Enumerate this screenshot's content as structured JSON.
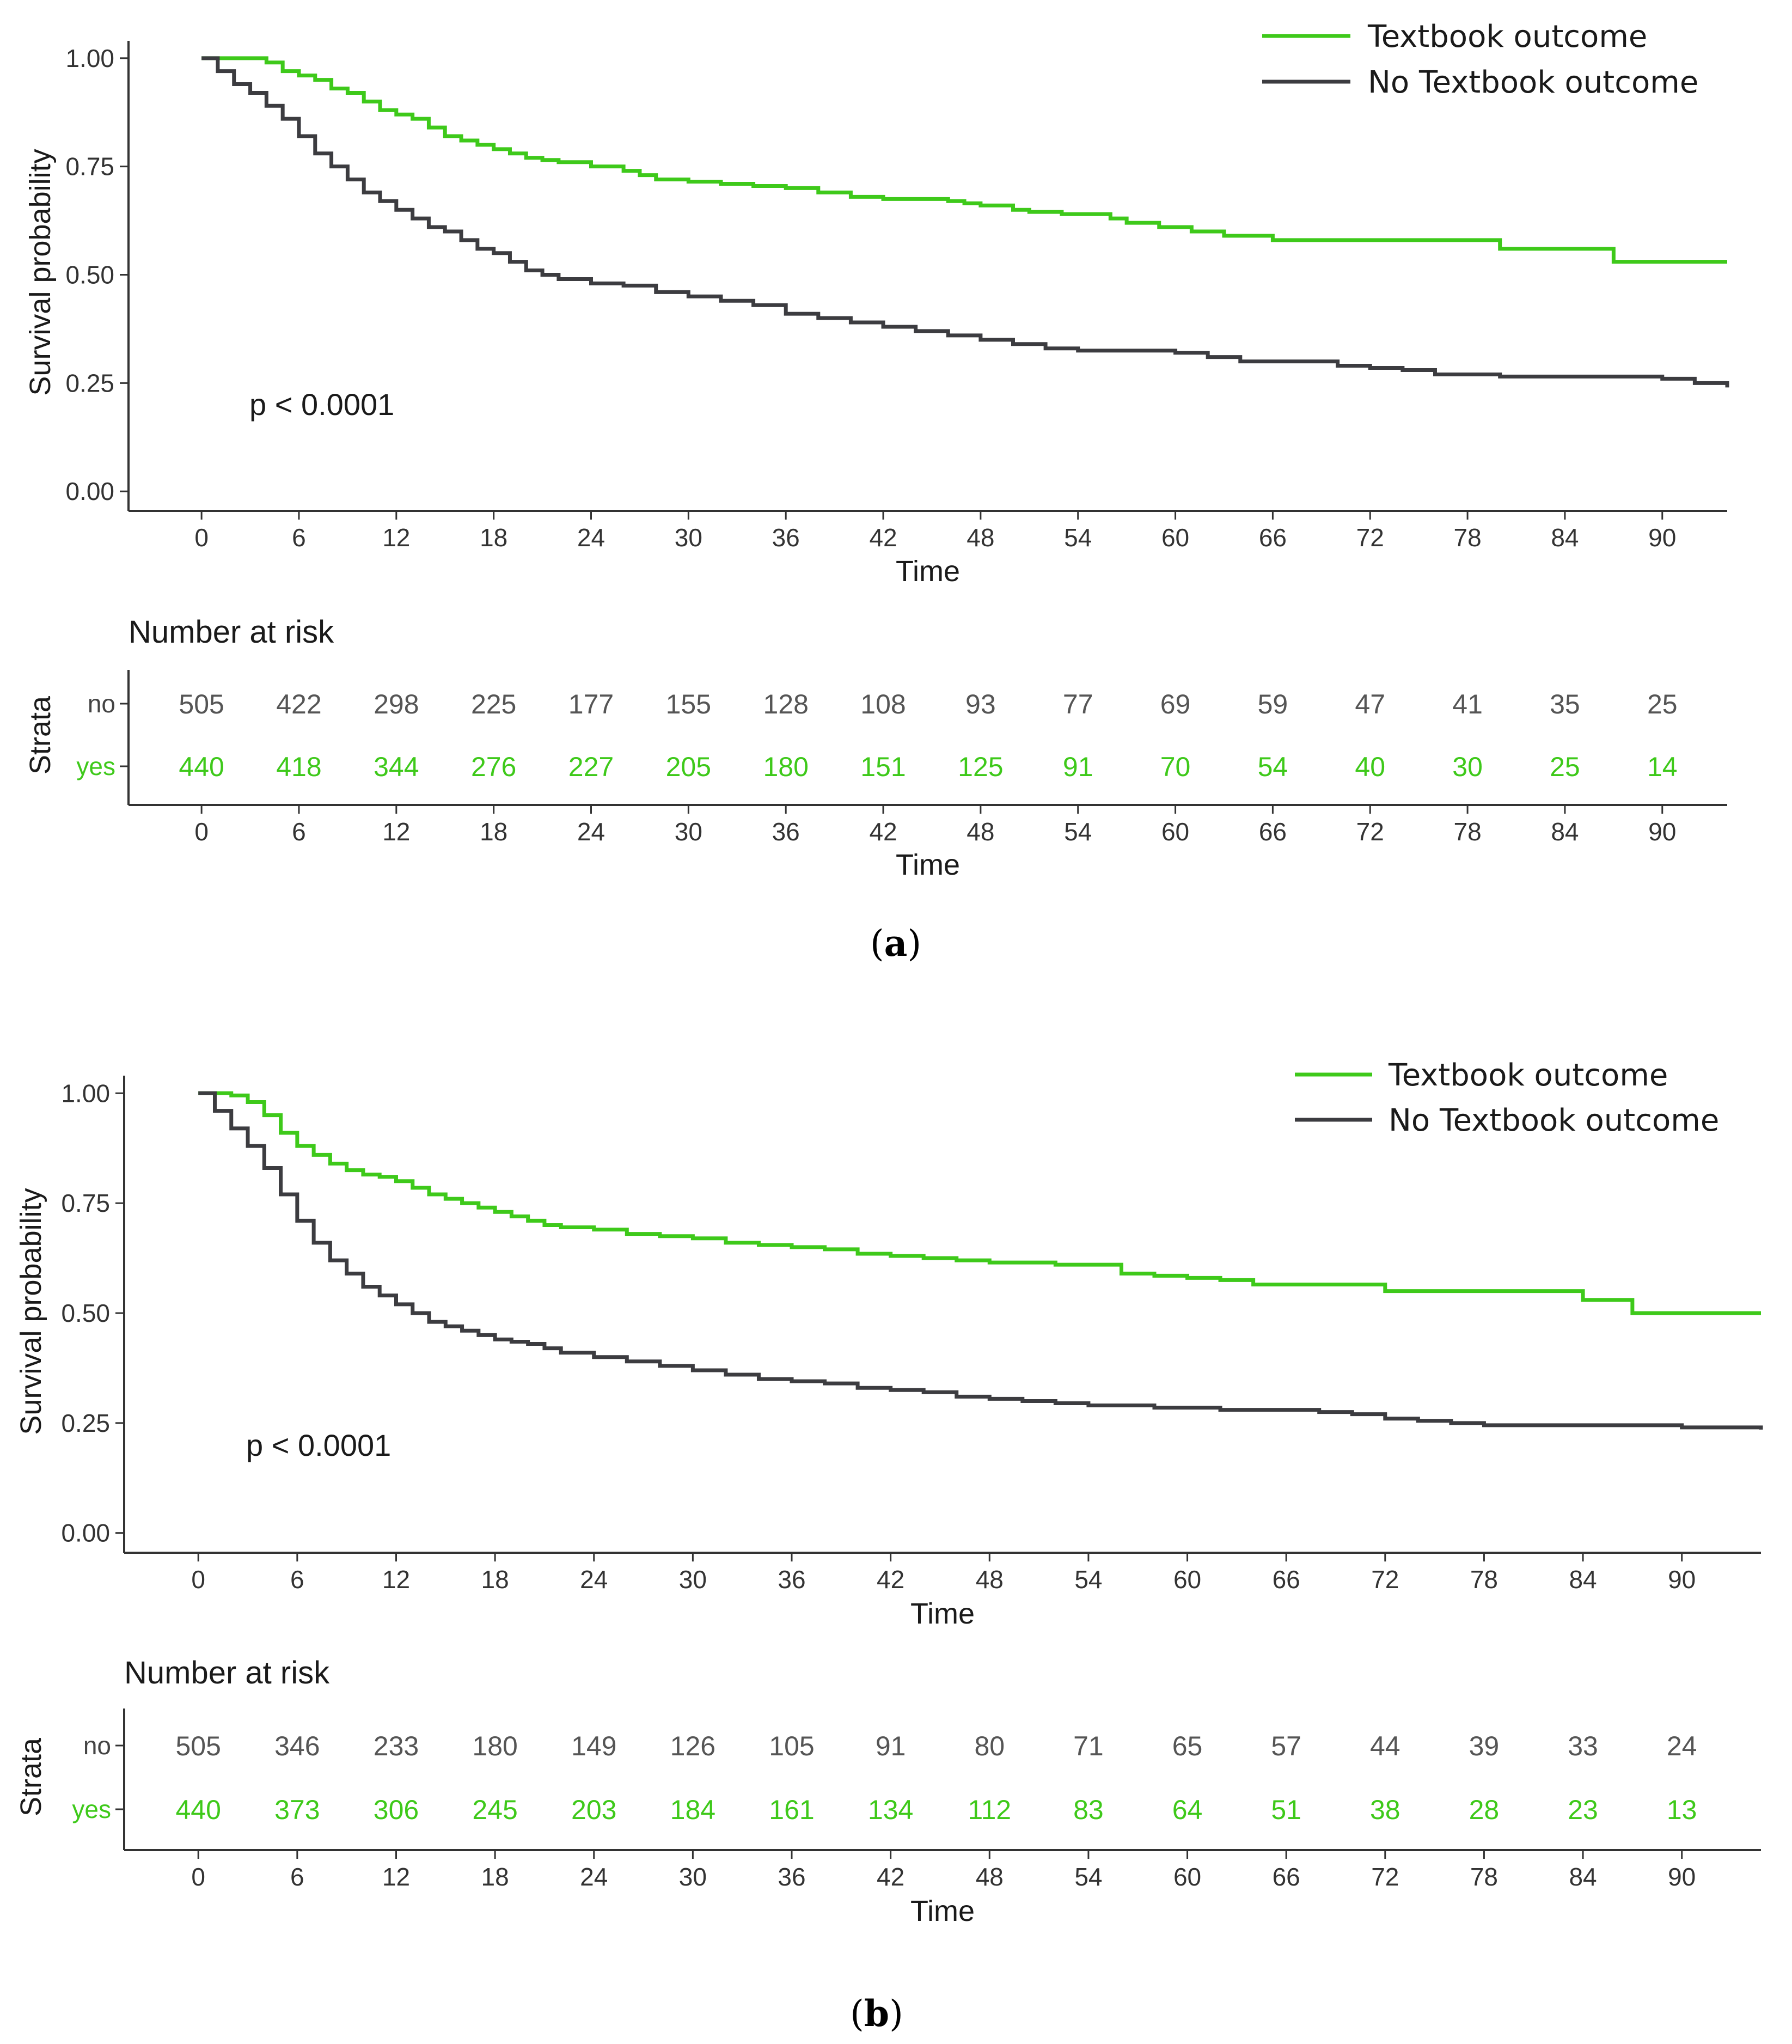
{
  "colors": {
    "textbook": "#3ec91a",
    "no_textbook": "#3c3c40"
  },
  "panels": [
    {
      "panel_label": "a",
      "legend": {
        "textbook": "Textbook outcome",
        "no_textbook": "No Textbook outcome"
      },
      "p_value": "p < 0.0001",
      "risk_table": {
        "title": "Number at risk",
        "ylabel": "Strata",
        "xlabel": "Time",
        "row_labels": {
          "no": "no",
          "yes": "yes"
        }
      }
    },
    {
      "panel_label": "b",
      "legend": {
        "textbook": "Textbook outcome",
        "no_textbook": "No Textbook outcome"
      },
      "p_value": "p < 0.0001",
      "risk_table": {
        "title": "Number at risk",
        "ylabel": "Strata",
        "xlabel": "Time",
        "row_labels": {
          "no": "no",
          "yes": "yes"
        }
      }
    }
  ],
  "chart_data": [
    {
      "type": "line",
      "title": "",
      "xlabel": "Time",
      "ylabel": "Survival probability",
      "xlim": [
        -4.5,
        94
      ],
      "ylim": [
        -0.045,
        1.04
      ],
      "x_ticks": [
        0,
        6,
        12,
        18,
        24,
        30,
        36,
        42,
        48,
        54,
        60,
        66,
        72,
        78,
        84,
        90
      ],
      "y_ticks": [
        0.0,
        0.25,
        0.5,
        0.75,
        1.0
      ],
      "y_tick_labels": [
        "0.00",
        "0.25",
        "0.50",
        "0.75",
        "1.00"
      ],
      "grid": false,
      "legend_position": "top-right",
      "series": [
        {
          "name": "Textbook outcome",
          "x": [
            0,
            3,
            4,
            5,
            6,
            7,
            8,
            9,
            10,
            11,
            12,
            13,
            14,
            15,
            16,
            17,
            18,
            19,
            20,
            21,
            22,
            24,
            26,
            27,
            28,
            30,
            32,
            34,
            36,
            38,
            40,
            42,
            46,
            47,
            48,
            50,
            51,
            53,
            56,
            57,
            59,
            61,
            63,
            66,
            67,
            70,
            72,
            75,
            77,
            80,
            83,
            87,
            89,
            94
          ],
          "y": [
            1.0,
            1.0,
            0.99,
            0.97,
            0.96,
            0.95,
            0.93,
            0.92,
            0.9,
            0.88,
            0.87,
            0.86,
            0.84,
            0.82,
            0.81,
            0.8,
            0.79,
            0.78,
            0.77,
            0.765,
            0.76,
            0.75,
            0.74,
            0.73,
            0.72,
            0.715,
            0.71,
            0.705,
            0.7,
            0.69,
            0.68,
            0.675,
            0.67,
            0.665,
            0.66,
            0.65,
            0.645,
            0.64,
            0.63,
            0.62,
            0.61,
            0.6,
            0.59,
            0.58,
            0.58,
            0.58,
            0.58,
            0.58,
            0.58,
            0.56,
            0.56,
            0.53,
            0.53,
            0.53
          ]
        },
        {
          "name": "No Textbook outcome",
          "x": [
            0,
            1,
            2,
            3,
            4,
            5,
            6,
            7,
            8,
            9,
            10,
            11,
            12,
            13,
            14,
            15,
            16,
            17,
            18,
            19,
            20,
            21,
            22,
            24,
            26,
            28,
            30,
            32,
            34,
            36,
            38,
            40,
            42,
            44,
            46,
            48,
            50,
            52,
            54,
            56,
            58,
            60,
            62,
            64,
            66,
            70,
            72,
            74,
            76,
            80,
            86,
            90,
            92,
            94
          ],
          "y": [
            1.0,
            0.97,
            0.94,
            0.92,
            0.89,
            0.86,
            0.82,
            0.78,
            0.75,
            0.72,
            0.69,
            0.67,
            0.65,
            0.63,
            0.61,
            0.6,
            0.58,
            0.56,
            0.55,
            0.53,
            0.51,
            0.5,
            0.49,
            0.48,
            0.475,
            0.46,
            0.45,
            0.44,
            0.43,
            0.41,
            0.4,
            0.39,
            0.38,
            0.37,
            0.36,
            0.35,
            0.34,
            0.33,
            0.325,
            0.325,
            0.325,
            0.32,
            0.31,
            0.3,
            0.3,
            0.29,
            0.285,
            0.28,
            0.27,
            0.265,
            0.265,
            0.26,
            0.25,
            0.24
          ]
        }
      ],
      "risk_table": {
        "times": [
          0,
          6,
          12,
          18,
          24,
          30,
          36,
          42,
          48,
          54,
          60,
          66,
          72,
          78,
          84,
          90
        ],
        "no": [
          505,
          422,
          298,
          225,
          177,
          155,
          128,
          108,
          93,
          77,
          69,
          59,
          47,
          41,
          35,
          25
        ],
        "yes": [
          440,
          418,
          344,
          276,
          227,
          205,
          180,
          151,
          125,
          91,
          70,
          54,
          40,
          30,
          25,
          14
        ]
      }
    },
    {
      "type": "line",
      "title": "",
      "xlabel": "Time",
      "ylabel": "Survival probability",
      "xlim": [
        -4.5,
        94.8
      ],
      "ylim": [
        -0.045,
        1.04
      ],
      "x_ticks": [
        0,
        6,
        12,
        18,
        24,
        30,
        36,
        42,
        48,
        54,
        60,
        66,
        72,
        78,
        84,
        90
      ],
      "y_ticks": [
        0.0,
        0.25,
        0.5,
        0.75,
        1.0
      ],
      "y_tick_labels": [
        "0.00",
        "0.25",
        "0.50",
        "0.75",
        "1.00"
      ],
      "grid": false,
      "legend_position": "top-right",
      "series": [
        {
          "name": "Textbook outcome",
          "x": [
            0,
            1,
            2,
            3,
            4,
            5,
            6,
            7,
            8,
            9,
            10,
            11,
            12,
            13,
            14,
            15,
            16,
            17,
            18,
            19,
            20,
            21,
            22,
            24,
            26,
            28,
            30,
            32,
            34,
            36,
            38,
            40,
            42,
            44,
            46,
            48,
            50,
            52,
            54,
            56,
            58,
            60,
            62,
            64,
            66,
            70,
            72,
            76,
            80,
            84,
            86,
            87,
            90,
            94.8
          ],
          "y": [
            1.0,
            1.0,
            0.995,
            0.98,
            0.95,
            0.91,
            0.88,
            0.86,
            0.84,
            0.825,
            0.815,
            0.81,
            0.8,
            0.785,
            0.77,
            0.76,
            0.75,
            0.74,
            0.73,
            0.72,
            0.71,
            0.7,
            0.695,
            0.69,
            0.68,
            0.675,
            0.67,
            0.66,
            0.655,
            0.65,
            0.645,
            0.635,
            0.63,
            0.625,
            0.62,
            0.615,
            0.615,
            0.61,
            0.61,
            0.59,
            0.585,
            0.58,
            0.575,
            0.565,
            0.565,
            0.565,
            0.55,
            0.55,
            0.55,
            0.53,
            0.53,
            0.5,
            0.5,
            0.5
          ]
        },
        {
          "name": "No Textbook outcome",
          "x": [
            0,
            1,
            2,
            3,
            4,
            5,
            6,
            7,
            8,
            9,
            10,
            11,
            12,
            13,
            14,
            15,
            16,
            17,
            18,
            19,
            20,
            21,
            22,
            24,
            26,
            28,
            30,
            32,
            34,
            36,
            38,
            40,
            42,
            44,
            46,
            48,
            50,
            52,
            54,
            56,
            58,
            60,
            62,
            64,
            66,
            68,
            70,
            72,
            74,
            76,
            78,
            84,
            90,
            94.8
          ],
          "y": [
            1.0,
            0.96,
            0.92,
            0.88,
            0.83,
            0.77,
            0.71,
            0.66,
            0.62,
            0.59,
            0.56,
            0.54,
            0.52,
            0.5,
            0.48,
            0.47,
            0.46,
            0.45,
            0.44,
            0.435,
            0.43,
            0.42,
            0.41,
            0.4,
            0.39,
            0.38,
            0.37,
            0.36,
            0.35,
            0.345,
            0.34,
            0.33,
            0.325,
            0.32,
            0.31,
            0.305,
            0.3,
            0.295,
            0.29,
            0.29,
            0.285,
            0.285,
            0.28,
            0.28,
            0.28,
            0.275,
            0.27,
            0.26,
            0.255,
            0.25,
            0.245,
            0.245,
            0.24,
            0.235
          ]
        }
      ],
      "risk_table": {
        "times": [
          0,
          6,
          12,
          18,
          24,
          30,
          36,
          42,
          48,
          54,
          60,
          66,
          72,
          78,
          84,
          90
        ],
        "no": [
          505,
          346,
          233,
          180,
          149,
          126,
          105,
          91,
          80,
          71,
          65,
          57,
          44,
          39,
          33,
          24
        ],
        "yes": [
          440,
          373,
          306,
          245,
          203,
          184,
          161,
          134,
          112,
          83,
          64,
          51,
          38,
          28,
          23,
          13
        ]
      }
    }
  ]
}
